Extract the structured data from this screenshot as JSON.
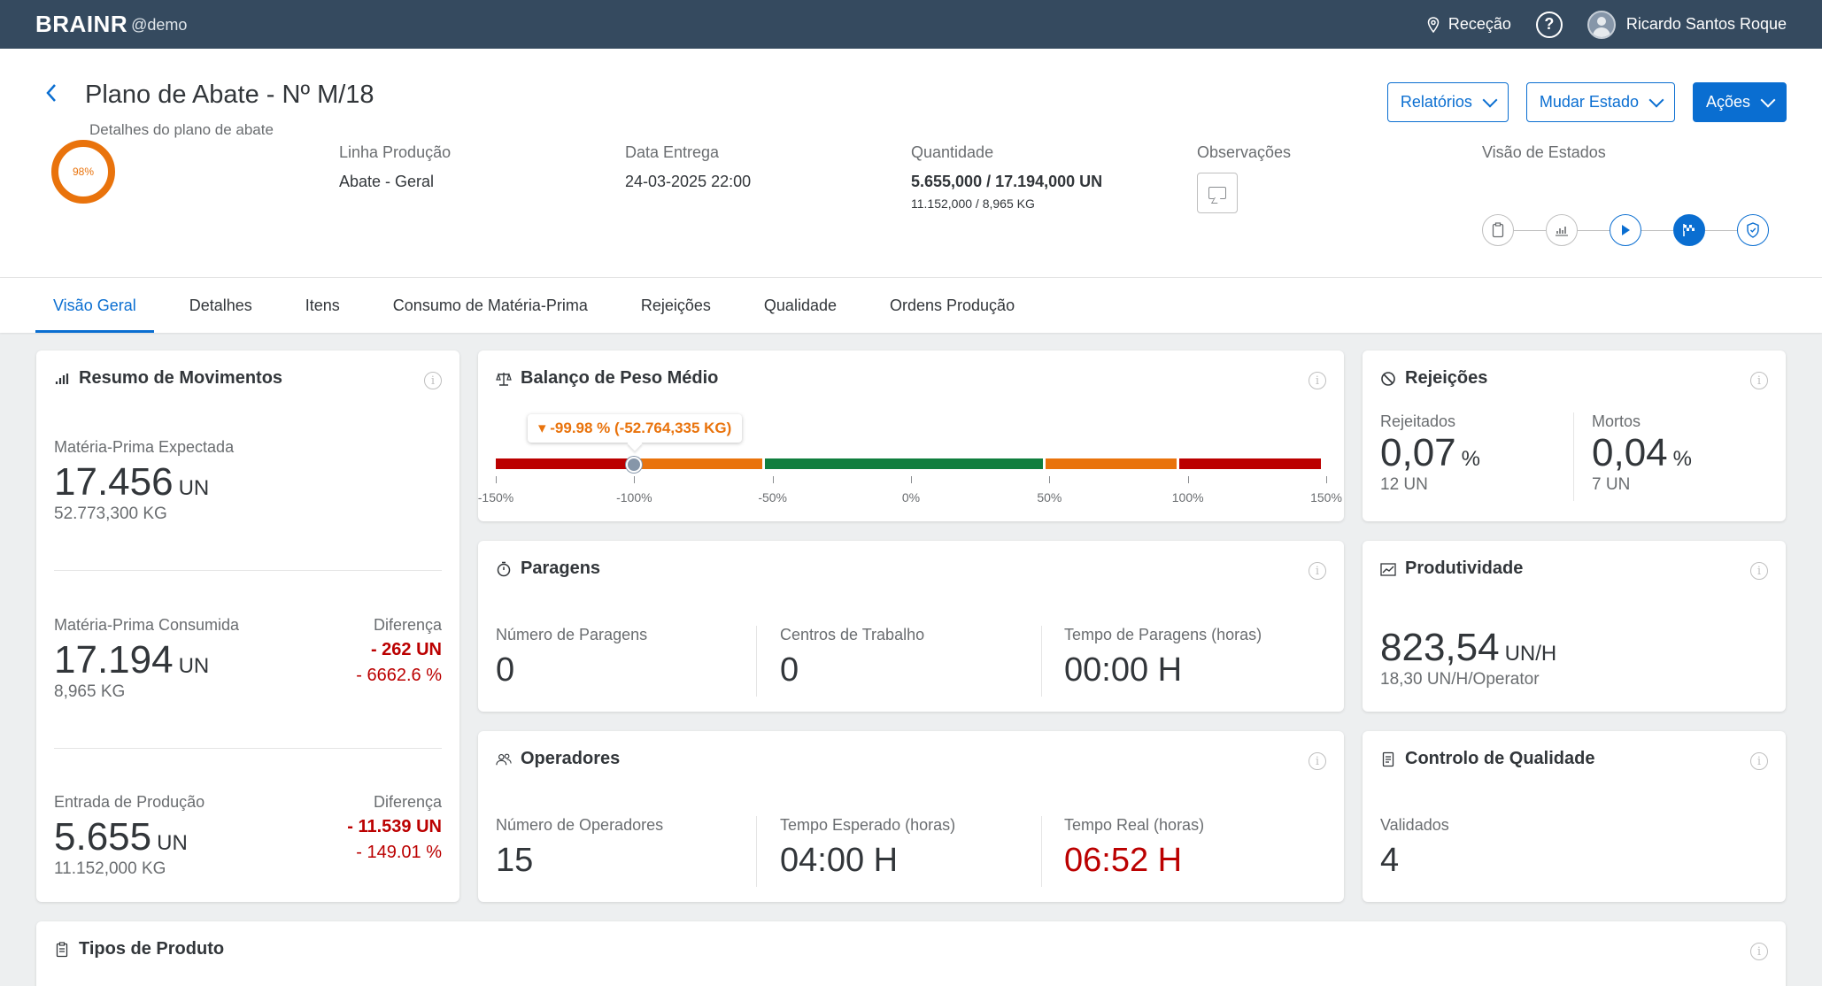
{
  "topbar": {
    "brand": "BRAINR",
    "brand_sub": "@demo",
    "location": "Receção",
    "help": "?",
    "user": "Ricardo Santos Roque"
  },
  "header": {
    "title": "Plano de Abate - Nº M/18",
    "subtitle": "Detalhes do plano de abate",
    "buttons": {
      "reports": "Relatórios",
      "change_state": "Mudar Estado",
      "actions": "Ações"
    },
    "progress": "98%",
    "progress_value": 0.98,
    "kpis": {
      "line_label": "Linha Produção",
      "line_value": "Abate - Geral",
      "date_label": "Data Entrega",
      "date_value": "24-03-2025 22:00",
      "qty_label": "Quantidade",
      "qty_value": "5.655,000 / 17.194,000 UN",
      "qty_sub": "11.152,000 / 8,965 KG",
      "obs_label": "Observações",
      "states_label": "Visão de Estados"
    },
    "states": [
      "clipboard-icon",
      "chart-icon",
      "play-icon",
      "flag-icon",
      "shield-icon"
    ]
  },
  "tabs": [
    "Visão Geral",
    "Detalhes",
    "Itens",
    "Consumo de Matéria-Prima",
    "Rejeições",
    "Qualidade",
    "Ordens Produção"
  ],
  "movements": {
    "title": "Resumo de Movimentos",
    "expected_label": "Matéria-Prima Expectada",
    "expected_value": "17.456",
    "expected_unit": "UN",
    "expected_kg": "52.773,300 KG",
    "consumed_label": "Matéria-Prima Consumida",
    "consumed_value": "17.194",
    "consumed_unit": "UN",
    "consumed_kg": "8,965 KG",
    "consumed_diff_label": "Diferença",
    "consumed_diff_un": "- 262 UN",
    "consumed_diff_pct": "- 6662.6 %",
    "entry_label": "Entrada de Produção",
    "entry_value": "5.655",
    "entry_unit": "UN",
    "entry_kg": "11.152,000 KG",
    "entry_diff_label": "Diferença",
    "entry_diff_un": "- 11.539 UN",
    "entry_diff_pct": "- 149.01 %"
  },
  "balance": {
    "title": "Balanço de Peso Médio",
    "tooltip": "▾ -99.98 % (-52.764,335 KG)",
    "value_pct": -99.98,
    "ticks": [
      "-150%",
      "-100%",
      "-50%",
      "0%",
      "50%",
      "100%",
      "150%"
    ],
    "colors": {
      "red": "#bb0000",
      "orange": "#e9730c",
      "green": "#107e3e"
    }
  },
  "rejections": {
    "title": "Rejeições",
    "rejected_label": "Rejeitados",
    "rejected_value": "0,07",
    "rejected_unit": "%",
    "rejected_un": "12 UN",
    "dead_label": "Mortos",
    "dead_value": "0,04",
    "dead_unit": "%",
    "dead_un": "7 UN"
  },
  "stops": {
    "title": "Paragens",
    "count_label": "Número de Paragens",
    "count_value": "0",
    "centers_label": "Centros de Trabalho",
    "centers_value": "0",
    "time_label": "Tempo de Paragens (horas)",
    "time_value": "00:00 H"
  },
  "productivity": {
    "title": "Produtividade",
    "value": "823,54",
    "unit": "UN/H",
    "sub": "18,30 UN/H/Operator"
  },
  "operators": {
    "title": "Operadores",
    "count_label": "Número de Operadores",
    "count_value": "15",
    "expected_label": "Tempo Esperado (horas)",
    "expected_value": "04:00 H",
    "real_label": "Tempo Real (horas)",
    "real_value": "06:52 H"
  },
  "quality": {
    "title": "Controlo de Qualidade",
    "validated_label": "Validados",
    "validated_value": "4"
  },
  "product_types": {
    "title": "Tipos de Produto"
  }
}
